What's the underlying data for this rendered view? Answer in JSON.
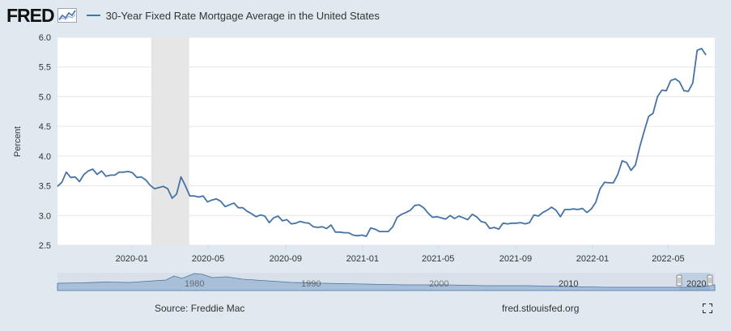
{
  "header": {
    "logo": "FRED",
    "legend_label": "30-Year Fixed Rate Mortgage Average in the United States"
  },
  "footer": {
    "source": "Source: Freddie Mac",
    "url": "fred.stlouisfed.org"
  },
  "colors": {
    "series": "#4572a7",
    "background": "#e1e9f0",
    "recession": "#e6e6e6"
  },
  "chart_data": {
    "type": "line",
    "ylabel": "Percent",
    "ylim": [
      2.5,
      6.0
    ],
    "yticks": [
      "2.5",
      "3.0",
      "3.5",
      "4.0",
      "4.5",
      "5.0",
      "5.5",
      "6.0"
    ],
    "xlim": [
      "2019-09-05",
      "2022-07-14"
    ],
    "xticks": [
      {
        "date": "2020-01-01",
        "label": "2020-01"
      },
      {
        "date": "2020-05-01",
        "label": "2020-05"
      },
      {
        "date": "2020-09-01",
        "label": "2020-09"
      },
      {
        "date": "2021-01-01",
        "label": "2021-01"
      },
      {
        "date": "2021-05-01",
        "label": "2021-05"
      },
      {
        "date": "2021-09-01",
        "label": "2021-09"
      },
      {
        "date": "2022-01-01",
        "label": "2022-01"
      },
      {
        "date": "2022-05-01",
        "label": "2022-05"
      }
    ],
    "recession": {
      "start": "2020-02-01",
      "end": "2020-04-01"
    },
    "series": [
      {
        "points": [
          [
            "2019-09-05",
            3.49
          ],
          [
            "2019-09-12",
            3.56
          ],
          [
            "2019-09-19",
            3.73
          ],
          [
            "2019-09-26",
            3.64
          ],
          [
            "2019-10-03",
            3.65
          ],
          [
            "2019-10-10",
            3.57
          ],
          [
            "2019-10-17",
            3.69
          ],
          [
            "2019-10-24",
            3.75
          ],
          [
            "2019-10-31",
            3.78
          ],
          [
            "2019-11-07",
            3.69
          ],
          [
            "2019-11-14",
            3.75
          ],
          [
            "2019-11-21",
            3.66
          ],
          [
            "2019-11-28",
            3.68
          ],
          [
            "2019-12-05",
            3.68
          ],
          [
            "2019-12-12",
            3.73
          ],
          [
            "2019-12-19",
            3.73
          ],
          [
            "2019-12-26",
            3.74
          ],
          [
            "2020-01-02",
            3.72
          ],
          [
            "2020-01-09",
            3.64
          ],
          [
            "2020-01-16",
            3.65
          ],
          [
            "2020-01-23",
            3.6
          ],
          [
            "2020-01-30",
            3.51
          ],
          [
            "2020-02-06",
            3.45
          ],
          [
            "2020-02-13",
            3.47
          ],
          [
            "2020-02-20",
            3.49
          ],
          [
            "2020-02-27",
            3.45
          ],
          [
            "2020-03-05",
            3.29
          ],
          [
            "2020-03-12",
            3.36
          ],
          [
            "2020-03-19",
            3.65
          ],
          [
            "2020-03-26",
            3.5
          ],
          [
            "2020-04-02",
            3.33
          ],
          [
            "2020-04-09",
            3.33
          ],
          [
            "2020-04-16",
            3.31
          ],
          [
            "2020-04-23",
            3.33
          ],
          [
            "2020-04-30",
            3.23
          ],
          [
            "2020-05-07",
            3.26
          ],
          [
            "2020-05-14",
            3.28
          ],
          [
            "2020-05-21",
            3.24
          ],
          [
            "2020-05-28",
            3.15
          ],
          [
            "2020-06-04",
            3.18
          ],
          [
            "2020-06-11",
            3.21
          ],
          [
            "2020-06-18",
            3.13
          ],
          [
            "2020-06-25",
            3.13
          ],
          [
            "2020-07-02",
            3.07
          ],
          [
            "2020-07-09",
            3.03
          ],
          [
            "2020-07-16",
            2.98
          ],
          [
            "2020-07-23",
            3.01
          ],
          [
            "2020-07-30",
            2.99
          ],
          [
            "2020-08-06",
            2.88
          ],
          [
            "2020-08-13",
            2.96
          ],
          [
            "2020-08-20",
            2.99
          ],
          [
            "2020-08-27",
            2.91
          ],
          [
            "2020-09-03",
            2.93
          ],
          [
            "2020-09-10",
            2.86
          ],
          [
            "2020-09-17",
            2.87
          ],
          [
            "2020-09-24",
            2.9
          ],
          [
            "2020-10-01",
            2.88
          ],
          [
            "2020-10-08",
            2.87
          ],
          [
            "2020-10-15",
            2.81
          ],
          [
            "2020-10-22",
            2.8
          ],
          [
            "2020-10-29",
            2.81
          ],
          [
            "2020-11-05",
            2.78
          ],
          [
            "2020-11-12",
            2.84
          ],
          [
            "2020-11-19",
            2.72
          ],
          [
            "2020-11-26",
            2.72
          ],
          [
            "2020-12-03",
            2.71
          ],
          [
            "2020-12-10",
            2.71
          ],
          [
            "2020-12-17",
            2.67
          ],
          [
            "2020-12-24",
            2.66
          ],
          [
            "2020-12-31",
            2.67
          ],
          [
            "2021-01-07",
            2.65
          ],
          [
            "2021-01-14",
            2.79
          ],
          [
            "2021-01-21",
            2.77
          ],
          [
            "2021-01-28",
            2.73
          ],
          [
            "2021-02-04",
            2.73
          ],
          [
            "2021-02-11",
            2.73
          ],
          [
            "2021-02-18",
            2.81
          ],
          [
            "2021-02-25",
            2.97
          ],
          [
            "2021-03-04",
            3.02
          ],
          [
            "2021-03-11",
            3.05
          ],
          [
            "2021-03-18",
            3.09
          ],
          [
            "2021-03-25",
            3.17
          ],
          [
            "2021-04-01",
            3.18
          ],
          [
            "2021-04-08",
            3.13
          ],
          [
            "2021-04-15",
            3.04
          ],
          [
            "2021-04-22",
            2.97
          ],
          [
            "2021-04-29",
            2.98
          ],
          [
            "2021-05-06",
            2.96
          ],
          [
            "2021-05-13",
            2.94
          ],
          [
            "2021-05-20",
            3.0
          ],
          [
            "2021-05-27",
            2.95
          ],
          [
            "2021-06-03",
            2.99
          ],
          [
            "2021-06-10",
            2.96
          ],
          [
            "2021-06-17",
            2.93
          ],
          [
            "2021-06-24",
            3.02
          ],
          [
            "2021-07-01",
            2.98
          ],
          [
            "2021-07-08",
            2.9
          ],
          [
            "2021-07-15",
            2.88
          ],
          [
            "2021-07-22",
            2.78
          ],
          [
            "2021-07-29",
            2.8
          ],
          [
            "2021-08-05",
            2.77
          ],
          [
            "2021-08-12",
            2.87
          ],
          [
            "2021-08-19",
            2.86
          ],
          [
            "2021-08-26",
            2.87
          ],
          [
            "2021-09-02",
            2.87
          ],
          [
            "2021-09-09",
            2.88
          ],
          [
            "2021-09-16",
            2.86
          ],
          [
            "2021-09-23",
            2.88
          ],
          [
            "2021-09-30",
            3.01
          ],
          [
            "2021-10-07",
            2.99
          ],
          [
            "2021-10-14",
            3.05
          ],
          [
            "2021-10-21",
            3.09
          ],
          [
            "2021-10-28",
            3.14
          ],
          [
            "2021-11-04",
            3.09
          ],
          [
            "2021-11-11",
            2.98
          ],
          [
            "2021-11-18",
            3.1
          ],
          [
            "2021-11-25",
            3.1
          ],
          [
            "2021-12-02",
            3.11
          ],
          [
            "2021-12-09",
            3.1
          ],
          [
            "2021-12-16",
            3.12
          ],
          [
            "2021-12-23",
            3.05
          ],
          [
            "2021-12-30",
            3.11
          ],
          [
            "2022-01-06",
            3.22
          ],
          [
            "2022-01-13",
            3.45
          ],
          [
            "2022-01-20",
            3.56
          ],
          [
            "2022-01-27",
            3.55
          ],
          [
            "2022-02-03",
            3.55
          ],
          [
            "2022-02-10",
            3.69
          ],
          [
            "2022-02-17",
            3.92
          ],
          [
            "2022-02-24",
            3.89
          ],
          [
            "2022-03-03",
            3.76
          ],
          [
            "2022-03-10",
            3.85
          ],
          [
            "2022-03-17",
            4.16
          ],
          [
            "2022-03-24",
            4.42
          ],
          [
            "2022-03-31",
            4.67
          ],
          [
            "2022-04-07",
            4.72
          ],
          [
            "2022-04-14",
            5.0
          ],
          [
            "2022-04-21",
            5.11
          ],
          [
            "2022-04-28",
            5.1
          ],
          [
            "2022-05-05",
            5.27
          ],
          [
            "2022-05-12",
            5.3
          ],
          [
            "2022-05-19",
            5.25
          ],
          [
            "2022-05-26",
            5.1
          ],
          [
            "2022-06-02",
            5.09
          ],
          [
            "2022-06-09",
            5.23
          ],
          [
            "2022-06-16",
            5.78
          ],
          [
            "2022-06-23",
            5.81
          ],
          [
            "2022-06-30",
            5.7
          ]
        ]
      }
    ]
  }
}
